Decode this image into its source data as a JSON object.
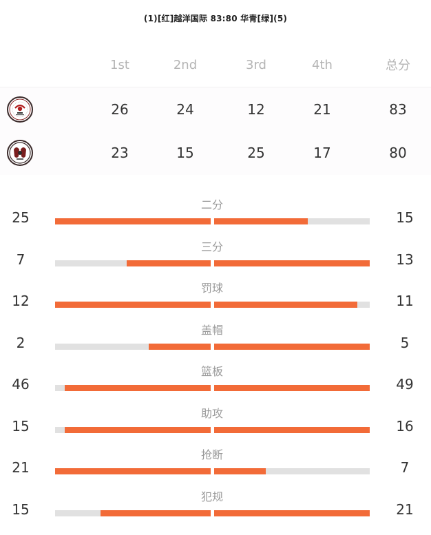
{
  "header": {
    "title": "(1)[红]越洋国际 83:80 华青[绿](5)"
  },
  "score_table": {
    "columns": [
      "1st",
      "2nd",
      "3rd",
      "4th",
      "总分"
    ],
    "teams": [
      {
        "logo": "team-logo-yueyang-icon",
        "scores": [
          "26",
          "24",
          "12",
          "21",
          "83"
        ]
      },
      {
        "logo": "team-logo-huaqing-icon",
        "scores": [
          "23",
          "15",
          "25",
          "17",
          "80"
        ]
      }
    ]
  },
  "colors": {
    "bar_fill": "#f26b38",
    "bar_track": "#e1e1e1",
    "label": "#9a9a9a"
  },
  "stats": [
    {
      "label": "二分",
      "left": "25",
      "right": "15",
      "left_fill": 1.0,
      "right_fill": 0.6
    },
    {
      "label": "三分",
      "left": "7",
      "right": "13",
      "left_fill": 0.54,
      "right_fill": 1.0
    },
    {
      "label": "罚球",
      "left": "12",
      "right": "11",
      "left_fill": 1.0,
      "right_fill": 0.92
    },
    {
      "label": "盖帽",
      "left": "2",
      "right": "5",
      "left_fill": 0.4,
      "right_fill": 1.0
    },
    {
      "label": "篮板",
      "left": "46",
      "right": "49",
      "left_fill": 0.94,
      "right_fill": 1.0
    },
    {
      "label": "助攻",
      "left": "15",
      "right": "16",
      "left_fill": 0.94,
      "right_fill": 1.0
    },
    {
      "label": "抢断",
      "left": "21",
      "right": "7",
      "left_fill": 1.0,
      "right_fill": 0.33
    },
    {
      "label": "犯规",
      "left": "15",
      "right": "21",
      "left_fill": 0.71,
      "right_fill": 1.0
    }
  ]
}
